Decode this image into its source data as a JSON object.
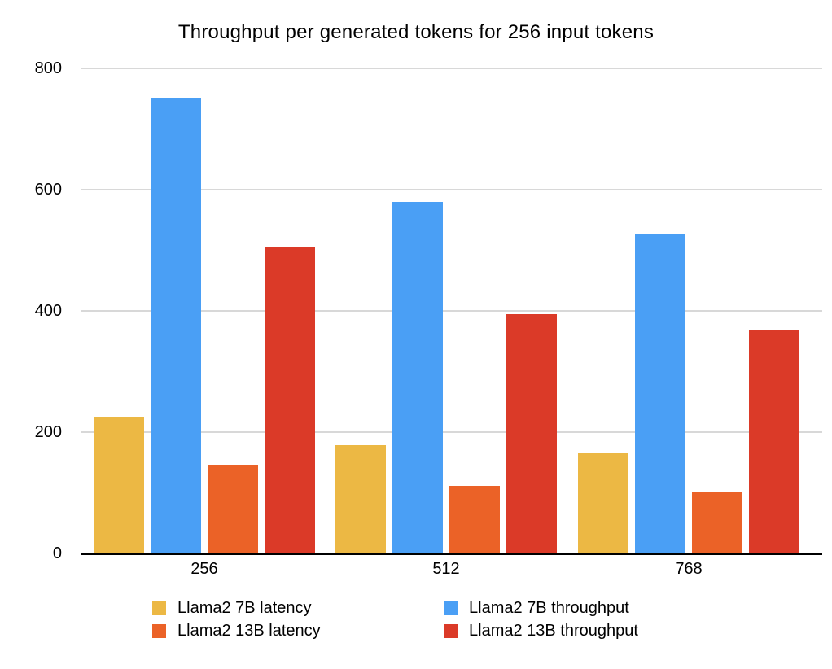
{
  "title": "Throughput per generated tokens for 256 input tokens",
  "colors": {
    "series_yellow": "#ECB844",
    "series_blue": "#4A9FF5",
    "series_orange": "#EB6227",
    "series_red": "#DB3A28",
    "gridline": "#D8D8D8",
    "axis_line": "#000000",
    "text": "#000000",
    "background": "#FFFFFF"
  },
  "chart_data": {
    "type": "bar",
    "title": "Throughput per generated tokens for 256 input tokens",
    "categories": [
      "256",
      "512",
      "768"
    ],
    "series": [
      {
        "name": "Llama2 7B latency",
        "color": "#ECB844",
        "values": [
          226,
          179,
          165
        ]
      },
      {
        "name": "Llama2 7B throughput",
        "color": "#4A9FF5",
        "values": [
          750,
          580,
          526
        ]
      },
      {
        "name": "Llama2 13B latency",
        "color": "#EB6227",
        "values": [
          146,
          111,
          101
        ]
      },
      {
        "name": "Llama2 13B throughput",
        "color": "#DB3A28",
        "values": [
          505,
          395,
          369
        ]
      }
    ],
    "xlabel": "",
    "ylabel": "",
    "ylim": [
      0,
      800
    ],
    "yticks": [
      800,
      600,
      400,
      200,
      0
    ],
    "grid": true,
    "legend_position": "bottom",
    "legend_columns": [
      [
        "Llama2 7B latency",
        "Llama2 13B latency"
      ],
      [
        "Llama2 7B throughput",
        "Llama2 13B throughput"
      ]
    ]
  }
}
